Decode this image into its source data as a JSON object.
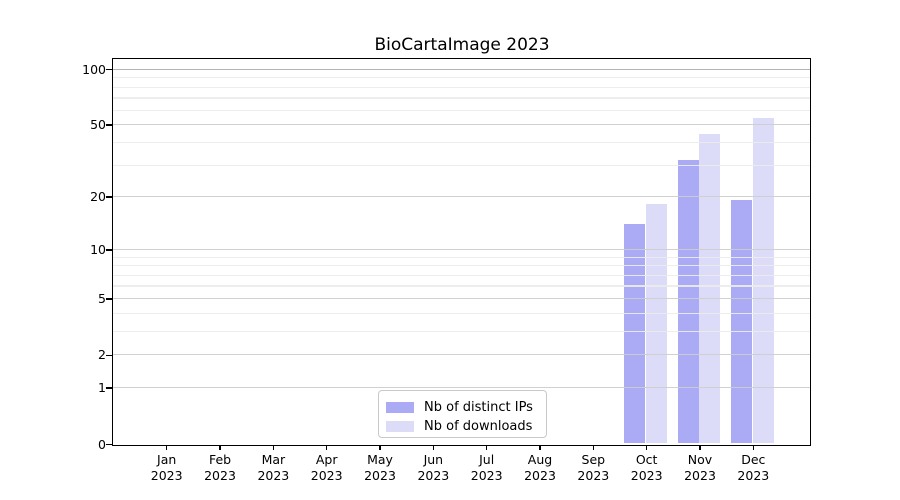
{
  "chart_data": {
    "type": "bar",
    "title": "BioCartaImage 2023",
    "xlabel": "",
    "ylabel": "",
    "categories": [
      {
        "month": "Jan",
        "year": "2023"
      },
      {
        "month": "Feb",
        "year": "2023"
      },
      {
        "month": "Mar",
        "year": "2023"
      },
      {
        "month": "Apr",
        "year": "2023"
      },
      {
        "month": "May",
        "year": "2023"
      },
      {
        "month": "Jun",
        "year": "2023"
      },
      {
        "month": "Jul",
        "year": "2023"
      },
      {
        "month": "Aug",
        "year": "2023"
      },
      {
        "month": "Sep",
        "year": "2023"
      },
      {
        "month": "Oct",
        "year": "2023"
      },
      {
        "month": "Nov",
        "year": "2023"
      },
      {
        "month": "Dec",
        "year": "2023"
      }
    ],
    "series": [
      {
        "name": "Nb of distinct IPs",
        "color": "#aaaaf5",
        "values": [
          0,
          0,
          0,
          0,
          0,
          0,
          0,
          0,
          0,
          14,
          32,
          19
        ]
      },
      {
        "name": "Nb of downloads",
        "color": "#dcdcf9",
        "values": [
          0,
          0,
          0,
          0,
          0,
          0,
          0,
          0,
          0,
          18,
          44,
          54
        ]
      }
    ],
    "yticks": [
      0,
      1,
      2,
      5,
      10,
      20,
      50,
      100
    ],
    "y_minor_gridlines": [
      3,
      4,
      6,
      7,
      8,
      9,
      30,
      40,
      60,
      70,
      80,
      90
    ],
    "yscale": "log1p",
    "ylim": [
      0,
      112
    ],
    "grid": "horizontal",
    "legend_position": "bottom-center",
    "colors": {
      "background": "#ffffff",
      "axis": "#000000",
      "grid_major": "#cdcdcd",
      "grid_minor": "#ececec",
      "grid_top": "#b3b3b3"
    }
  }
}
